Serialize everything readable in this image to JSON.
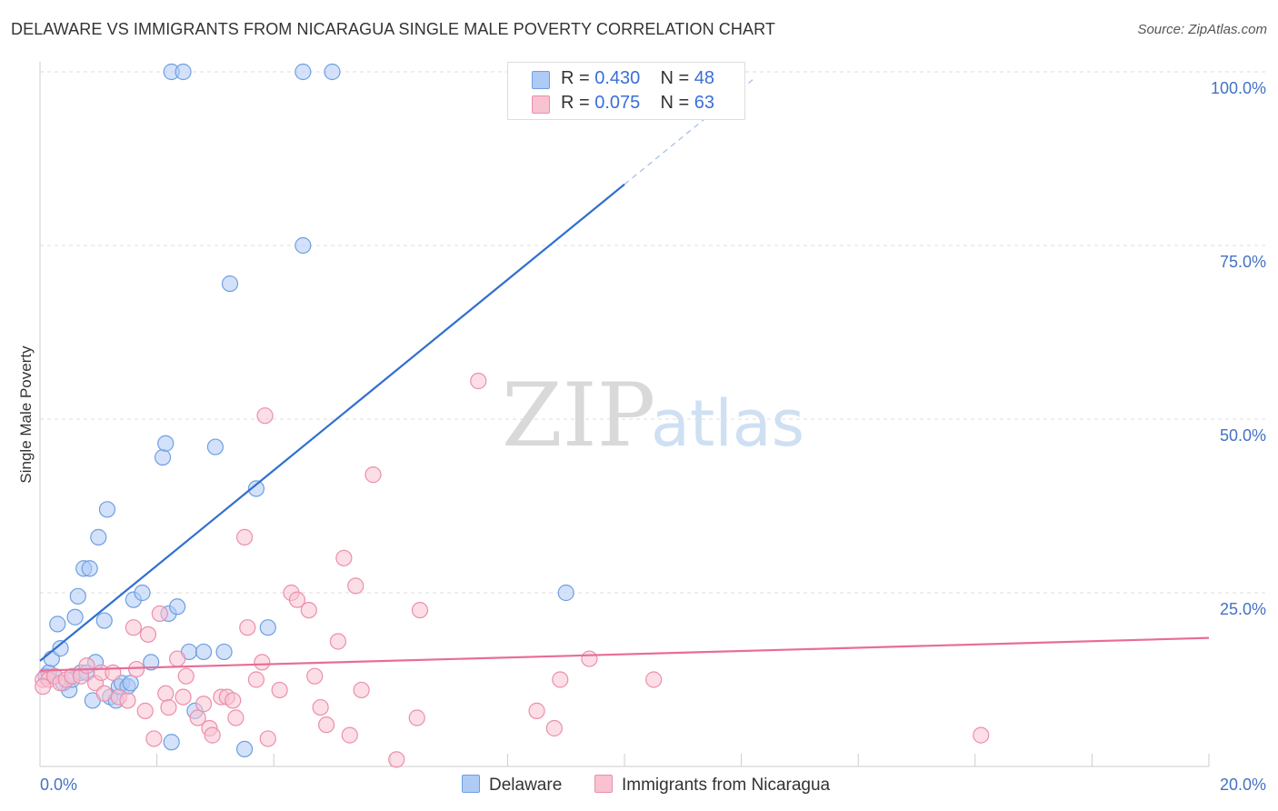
{
  "title": "DELAWARE VS IMMIGRANTS FROM NICARAGUA SINGLE MALE POVERTY CORRELATION CHART",
  "source": "Source: ZipAtlas.com",
  "watermark": {
    "zip": "ZIP",
    "atlas": "atlas"
  },
  "legend": {
    "rows": [
      {
        "r_label": "R = ",
        "r_value": "0.430",
        "n_label": "N = ",
        "n_value": "48"
      },
      {
        "r_label": "R = ",
        "r_value": "0.075",
        "n_label": "N = ",
        "n_value": "63"
      }
    ]
  },
  "bottom_legend": {
    "series1": "Delaware",
    "series2": "Immigrants from Nicaragua"
  },
  "colors": {
    "delaware_fill": "#aecbf5",
    "delaware_stroke": "#6e9fe0",
    "delaware_line": "#2f6fd0",
    "nicaragua_fill": "#f9c2d1",
    "nicaragua_stroke": "#eb8fab",
    "nicaragua_line": "#e86d97",
    "axis_text": "#4472c4",
    "grid": "#dddddd"
  },
  "chart_data": {
    "type": "scatter",
    "title": "DELAWARE VS IMMIGRANTS FROM NICARAGUA SINGLE MALE POVERTY CORRELATION CHART",
    "xlabel": "",
    "ylabel": "Single Male Poverty",
    "xlim": [
      0,
      20
    ],
    "ylim": [
      0,
      100
    ],
    "x_tick_labels": [
      "0.0%",
      "20.0%"
    ],
    "y_ticks": [
      25,
      50,
      75,
      100
    ],
    "y_tick_labels": [
      "25.0%",
      "50.0%",
      "75.0%",
      "100.0%"
    ],
    "grid": true,
    "legend_position": "top-center",
    "series": [
      {
        "name": "Delaware",
        "r": 0.43,
        "n": 48,
        "trend": {
          "x0": 0,
          "y0": 15.2,
          "x1": 10,
          "y1": 83.8,
          "dashed_to_x": 12.2,
          "dashed_to_y": 98.9
        },
        "points": [
          [
            0.1,
            13.0
          ],
          [
            0.15,
            13.5
          ],
          [
            0.2,
            15.5
          ],
          [
            0.25,
            13.0
          ],
          [
            0.3,
            20.5
          ],
          [
            0.35,
            17.0
          ],
          [
            0.4,
            12.0
          ],
          [
            0.5,
            11.0
          ],
          [
            0.55,
            12.5
          ],
          [
            0.6,
            21.5
          ],
          [
            0.65,
            24.5
          ],
          [
            0.7,
            13.5
          ],
          [
            0.75,
            28.5
          ],
          [
            0.8,
            13.5
          ],
          [
            0.85,
            28.5
          ],
          [
            0.9,
            9.5
          ],
          [
            0.95,
            15.0
          ],
          [
            1.0,
            33.0
          ],
          [
            1.1,
            21.0
          ],
          [
            1.15,
            37.0
          ],
          [
            1.2,
            10.0
          ],
          [
            1.3,
            9.5
          ],
          [
            1.35,
            11.5
          ],
          [
            1.4,
            12.0
          ],
          [
            1.5,
            11.5
          ],
          [
            1.55,
            12.0
          ],
          [
            1.6,
            24.0
          ],
          [
            1.75,
            25.0
          ],
          [
            1.9,
            15.0
          ],
          [
            2.1,
            44.5
          ],
          [
            2.15,
            46.5
          ],
          [
            2.2,
            22.0
          ],
          [
            2.25,
            3.5
          ],
          [
            2.35,
            23.0
          ],
          [
            2.55,
            16.5
          ],
          [
            2.65,
            8.0
          ],
          [
            2.8,
            16.5
          ],
          [
            3.0,
            46.0
          ],
          [
            3.15,
            16.5
          ],
          [
            3.25,
            69.5
          ],
          [
            3.5,
            2.5
          ],
          [
            3.7,
            40.0
          ],
          [
            3.9,
            20.0
          ],
          [
            4.5,
            75.0
          ],
          [
            9.0,
            25.0
          ],
          [
            2.25,
            100.0
          ],
          [
            2.45,
            100.0
          ],
          [
            4.5,
            100.0
          ],
          [
            5.0,
            100.0
          ]
        ]
      },
      {
        "name": "Immigrants from Nicaragua",
        "r": 0.075,
        "n": 63,
        "trend": {
          "x0": 0,
          "y0": 13.8,
          "x1": 20,
          "y1": 18.5
        },
        "points": [
          [
            0.05,
            12.5
          ],
          [
            0.15,
            12.5
          ],
          [
            0.25,
            13.0
          ],
          [
            0.35,
            12.0
          ],
          [
            0.45,
            12.5
          ],
          [
            0.55,
            13.0
          ],
          [
            0.7,
            13.0
          ],
          [
            0.8,
            14.5
          ],
          [
            0.95,
            12.0
          ],
          [
            1.05,
            13.5
          ],
          [
            1.1,
            10.5
          ],
          [
            1.25,
            13.5
          ],
          [
            1.35,
            10.0
          ],
          [
            1.5,
            9.5
          ],
          [
            1.6,
            20.0
          ],
          [
            1.65,
            14.0
          ],
          [
            1.8,
            8.0
          ],
          [
            1.85,
            19.0
          ],
          [
            1.95,
            4.0
          ],
          [
            2.05,
            22.0
          ],
          [
            2.15,
            10.5
          ],
          [
            2.2,
            8.5
          ],
          [
            2.35,
            15.5
          ],
          [
            2.45,
            10.0
          ],
          [
            2.5,
            13.0
          ],
          [
            2.7,
            7.0
          ],
          [
            2.8,
            9.0
          ],
          [
            2.9,
            5.5
          ],
          [
            2.95,
            4.5
          ],
          [
            3.1,
            10.0
          ],
          [
            3.2,
            10.0
          ],
          [
            3.3,
            9.5
          ],
          [
            3.35,
            7.0
          ],
          [
            3.5,
            33.0
          ],
          [
            3.55,
            20.0
          ],
          [
            3.7,
            12.5
          ],
          [
            3.8,
            15.0
          ],
          [
            3.9,
            4.0
          ],
          [
            4.1,
            11.0
          ],
          [
            4.3,
            25.0
          ],
          [
            4.4,
            24.0
          ],
          [
            4.6,
            22.5
          ],
          [
            4.7,
            13.0
          ],
          [
            4.8,
            8.5
          ],
          [
            4.9,
            6.0
          ],
          [
            5.1,
            18.0
          ],
          [
            5.2,
            30.0
          ],
          [
            5.3,
            4.5
          ],
          [
            5.4,
            26.0
          ],
          [
            5.5,
            11.0
          ],
          [
            5.7,
            42.0
          ],
          [
            3.85,
            50.5
          ],
          [
            6.1,
            1.0
          ],
          [
            6.45,
            7.0
          ],
          [
            6.5,
            22.5
          ],
          [
            7.5,
            55.5
          ],
          [
            8.5,
            8.0
          ],
          [
            8.8,
            5.5
          ],
          [
            8.9,
            12.5
          ],
          [
            9.4,
            15.5
          ],
          [
            10.5,
            12.5
          ],
          [
            16.1,
            4.5
          ],
          [
            0.05,
            11.5
          ]
        ]
      }
    ]
  }
}
